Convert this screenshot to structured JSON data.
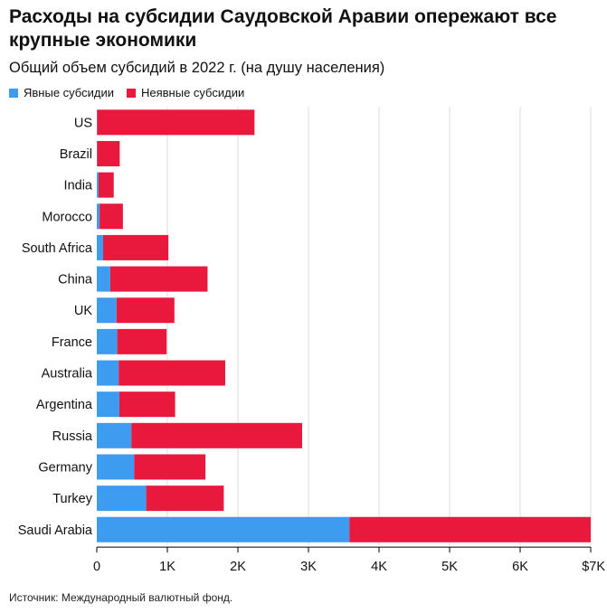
{
  "colors": {
    "explicit": "#3d9cf0",
    "implicit": "#e8193c",
    "grid": "#dddddd",
    "axis": "#000000"
  },
  "chart_data": {
    "type": "bar",
    "orientation": "horizontal",
    "stacked": true,
    "title": "Расходы на субсидии Саудовской Аравии опережают все крупные экономики",
    "subtitle": "Общий объем субсидий в 2022 г. (на душу населения)",
    "legend": [
      "Явные субсидии",
      "Неявные субсидии"
    ],
    "categories": [
      "US",
      "Brazil",
      "India",
      "Morocco",
      "South Africa",
      "China",
      "UK",
      "France",
      "Australia",
      "Argentina",
      "Russia",
      "Germany",
      "Turkey",
      "Saudi Arabia"
    ],
    "series": [
      {
        "name": "Явные субсидии",
        "values": [
          5,
          5,
          25,
          40,
          90,
          190,
          280,
          290,
          310,
          320,
          490,
          530,
          700,
          3580
        ]
      },
      {
        "name": "Неявные субсидии",
        "values": [
          2230,
          320,
          215,
          330,
          925,
          1380,
          820,
          700,
          1510,
          790,
          2420,
          1010,
          1100,
          3420
        ]
      }
    ],
    "xlim": [
      0,
      7000
    ],
    "xticks": [
      0,
      1000,
      2000,
      3000,
      4000,
      5000,
      6000,
      7000
    ],
    "xtick_labels": [
      "0",
      "1K",
      "2K",
      "3K",
      "4K",
      "5K",
      "6K",
      "$7K"
    ],
    "xlabel": "",
    "ylabel": "",
    "source": "Источник: Международный валютный фонд."
  }
}
